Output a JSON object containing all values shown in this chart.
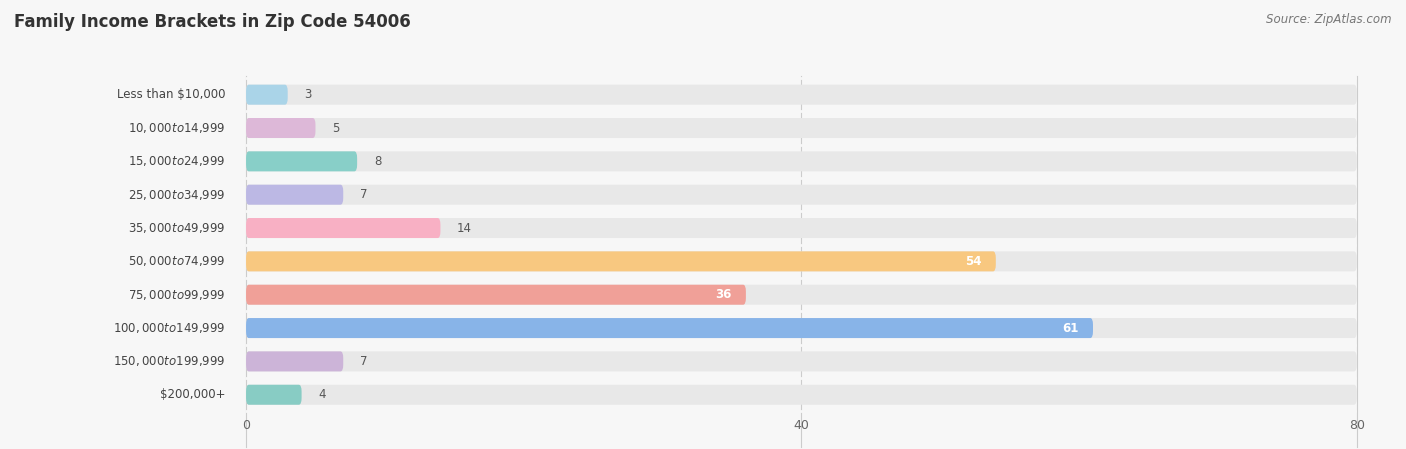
{
  "title": "Family Income Brackets in Zip Code 54006",
  "source": "Source: ZipAtlas.com",
  "categories": [
    "Less than $10,000",
    "$10,000 to $14,999",
    "$15,000 to $24,999",
    "$25,000 to $34,999",
    "$35,000 to $49,999",
    "$50,000 to $74,999",
    "$75,000 to $99,999",
    "$100,000 to $149,999",
    "$150,000 to $199,999",
    "$200,000+"
  ],
  "values": [
    3,
    5,
    8,
    7,
    14,
    54,
    36,
    61,
    7,
    4
  ],
  "bar_colors": [
    "#aad4e8",
    "#ddb8d8",
    "#88cfc8",
    "#bcb8e4",
    "#f8b0c4",
    "#f8c880",
    "#f0a098",
    "#88b4e8",
    "#ccb4d8",
    "#88ccc4"
  ],
  "xlim": [
    0,
    80
  ],
  "xticks": [
    0,
    40,
    80
  ],
  "background_color": "#f7f7f7",
  "bar_bg_color": "#e8e8e8",
  "title_fontsize": 12,
  "label_fontsize": 8.5,
  "value_fontsize": 8.5,
  "source_fontsize": 8.5,
  "value_inside_threshold": 30
}
